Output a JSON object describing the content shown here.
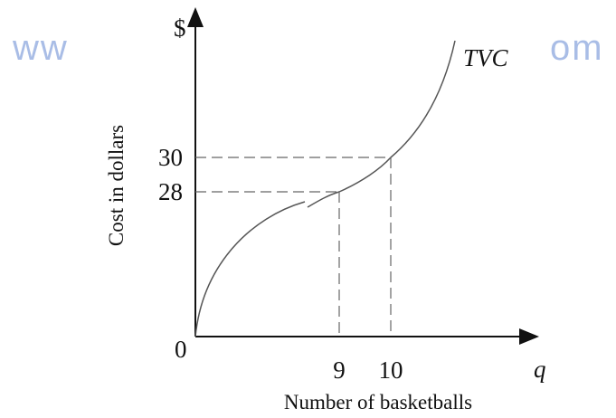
{
  "chart_data": {
    "type": "line",
    "y_axis_symbol": "$",
    "x_axis_symbol": "q",
    "ylabel": "Cost in dollars",
    "xlabel": "Number of basketballs",
    "origin": 0,
    "series": [
      {
        "name": "TVC",
        "color": "#555555",
        "x": [
          9,
          10
        ],
        "values": [
          28,
          30
        ]
      }
    ],
    "xticks": [
      9,
      10
    ],
    "yticks": [
      28,
      30
    ],
    "watermark": [
      "ww",
      "om"
    ]
  }
}
